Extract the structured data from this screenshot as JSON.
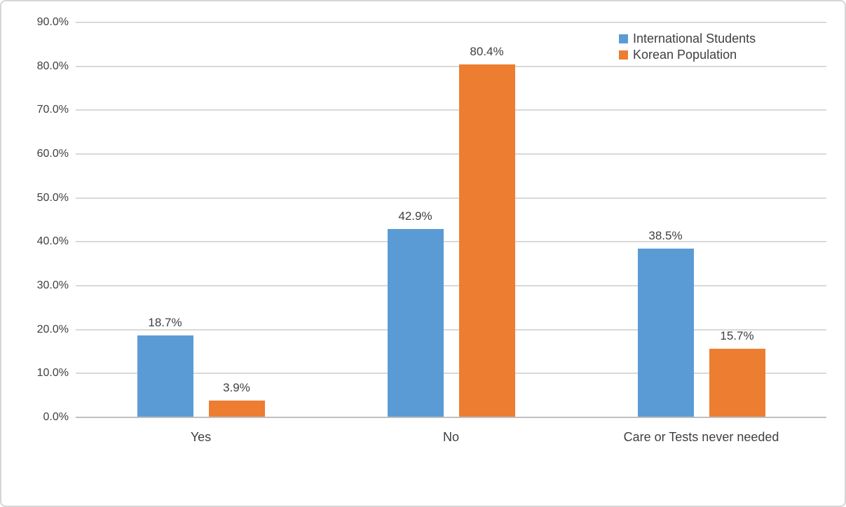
{
  "chart_data": {
    "type": "bar",
    "title": "",
    "xlabel": "",
    "ylabel": "",
    "categories": [
      "Yes",
      "No",
      "Care or Tests never needed"
    ],
    "series": [
      {
        "name": "International Students",
        "color": "#5B9BD5",
        "values": [
          18.7,
          42.9,
          38.5
        ],
        "labels": [
          "18.7%",
          "42.9%",
          "38.5%"
        ]
      },
      {
        "name": "Korean Population",
        "color": "#ED7D31",
        "values": [
          3.9,
          80.4,
          15.7
        ],
        "labels": [
          "3.9%",
          "80.4%",
          "15.7%"
        ]
      }
    ],
    "ylim": [
      0,
      90
    ],
    "ytick_step": 10,
    "ytick_labels": [
      "0.0%",
      "10.0%",
      "20.0%",
      "30.0%",
      "40.0%",
      "50.0%",
      "60.0%",
      "70.0%",
      "80.0%",
      "90.0%"
    ],
    "grid": true,
    "legend_position": "top-right"
  },
  "colors": {
    "background": "#FFFFFF",
    "border": "#D6D6D6",
    "gridline": "#D9D9D9",
    "axis_line": "#BFBFBF",
    "text": "#404040",
    "series_blue": "#5B9BD5",
    "series_orange": "#ED7D31"
  }
}
